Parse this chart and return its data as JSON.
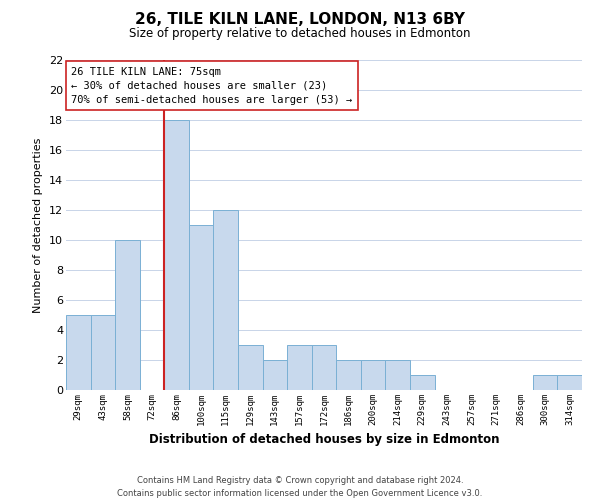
{
  "title": "26, TILE KILN LANE, LONDON, N13 6BY",
  "subtitle": "Size of property relative to detached houses in Edmonton",
  "xlabel": "Distribution of detached houses by size in Edmonton",
  "ylabel": "Number of detached properties",
  "categories": [
    "29sqm",
    "43sqm",
    "58sqm",
    "72sqm",
    "86sqm",
    "100sqm",
    "115sqm",
    "129sqm",
    "143sqm",
    "157sqm",
    "172sqm",
    "186sqm",
    "200sqm",
    "214sqm",
    "229sqm",
    "243sqm",
    "257sqm",
    "271sqm",
    "286sqm",
    "300sqm",
    "314sqm"
  ],
  "values": [
    5,
    5,
    10,
    0,
    18,
    11,
    12,
    3,
    2,
    3,
    3,
    2,
    2,
    2,
    1,
    0,
    0,
    0,
    0,
    1,
    1
  ],
  "bar_color": "#c8d9ed",
  "bar_edge_color": "#7ab0d4",
  "vertical_line_color": "#cc2222",
  "vertical_line_index": 4,
  "ylim": [
    0,
    22
  ],
  "yticks": [
    0,
    2,
    4,
    6,
    8,
    10,
    12,
    14,
    16,
    18,
    20,
    22
  ],
  "annotation_line1": "26 TILE KILN LANE: 75sqm",
  "annotation_line2": "← 30% of detached houses are smaller (23)",
  "annotation_line3": "70% of semi-detached houses are larger (53) →",
  "footer_line1": "Contains HM Land Registry data © Crown copyright and database right 2024.",
  "footer_line2": "Contains public sector information licensed under the Open Government Licence v3.0.",
  "background_color": "#ffffff",
  "grid_color": "#c8d4e8"
}
